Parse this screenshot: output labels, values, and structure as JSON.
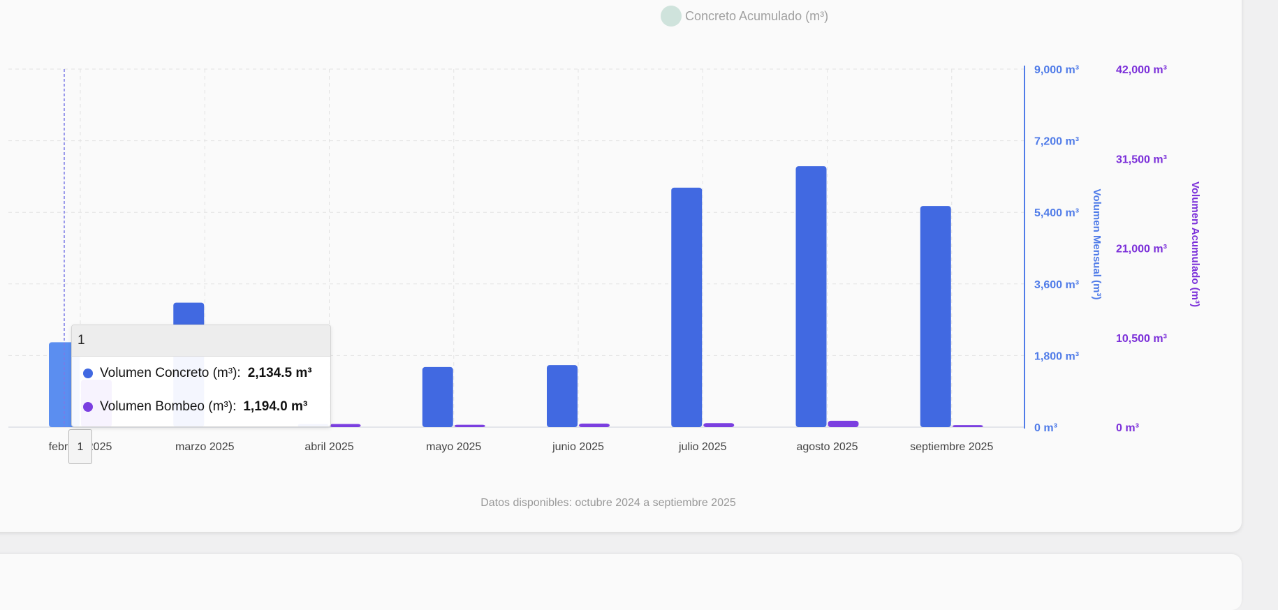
{
  "chart_data": {
    "type": "bar",
    "categories": [
      "febrero 2025",
      "marzo 2025",
      "abril 2025",
      "mayo 2025",
      "junio 2025",
      "julio 2025",
      "agosto 2025",
      "septiembre 2025"
    ],
    "series": [
      {
        "name": "Volumen Concreto (m³)",
        "axis": "left",
        "color": "#4169e1",
        "values": [
          2134.5,
          3130,
          80,
          1510,
          1560,
          6020,
          6560,
          5560
        ]
      },
      {
        "name": "Volumen Bombeo (m³)",
        "axis": "left",
        "color": "#7b3fe0",
        "values": [
          1194.0,
          0,
          80,
          60,
          90,
          100,
          160,
          50
        ]
      }
    ],
    "legend": {
      "label": "Concreto Acumulado (m³)",
      "color": "#cfe3dc",
      "placement": "top-center"
    },
    "y_left": {
      "label": "Volumen Mensual (m³)",
      "ticks": [
        "0 m³",
        "1,800 m³",
        "3,600 m³",
        "5,400 m³",
        "7,200 m³",
        "9,000 m³"
      ],
      "lim": [
        0,
        9000
      ],
      "color": "#4f7be8"
    },
    "y_right": {
      "label": "Volumen Acumulado (m³)",
      "ticks": [
        "0 m³",
        "10,500 m³",
        "21,000 m³",
        "31,500 m³",
        "42,000 m³"
      ],
      "lim": [
        0,
        42000
      ],
      "color": "#7b2fd9"
    },
    "grid": true,
    "footnote": "Datos disponibles: octubre 2024 a septiembre 2025",
    "highlight_bar_color": "#5b8ef0",
    "tooltip": {
      "header": "1",
      "rows": [
        {
          "label": "Volumen Concreto (m³):",
          "value": "2,134.5 m³",
          "color": "#4169e1"
        },
        {
          "label": "Volumen Bombeo (m³):",
          "value": "1,194.0 m³",
          "color": "#7b3fe0"
        }
      ]
    },
    "cursor_label": "1"
  }
}
